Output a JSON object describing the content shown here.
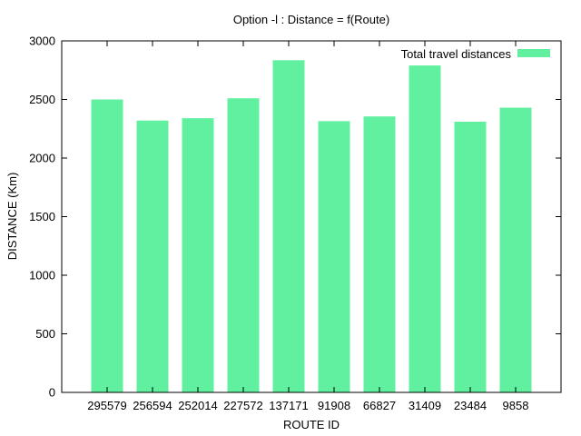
{
  "chart_data": {
    "type": "bar",
    "title": "Option -l : Distance = f(Route)",
    "xlabel": "ROUTE ID",
    "ylabel": "DISTANCE (Km)",
    "ylim": [
      0,
      3000
    ],
    "yticks": [
      0,
      500,
      1000,
      1500,
      2000,
      2500,
      3000
    ],
    "categories": [
      "295579",
      "256594",
      "252014",
      "227572",
      "137171",
      "91908",
      "66827",
      "31409",
      "23484",
      "9858"
    ],
    "series": [
      {
        "name": "Total travel distances",
        "color": "#60f0a0",
        "values": [
          2500,
          2320,
          2340,
          2510,
          2835,
          2315,
          2355,
          2790,
          2310,
          2430
        ]
      }
    ],
    "legend_position": "top-right",
    "grid": false
  }
}
